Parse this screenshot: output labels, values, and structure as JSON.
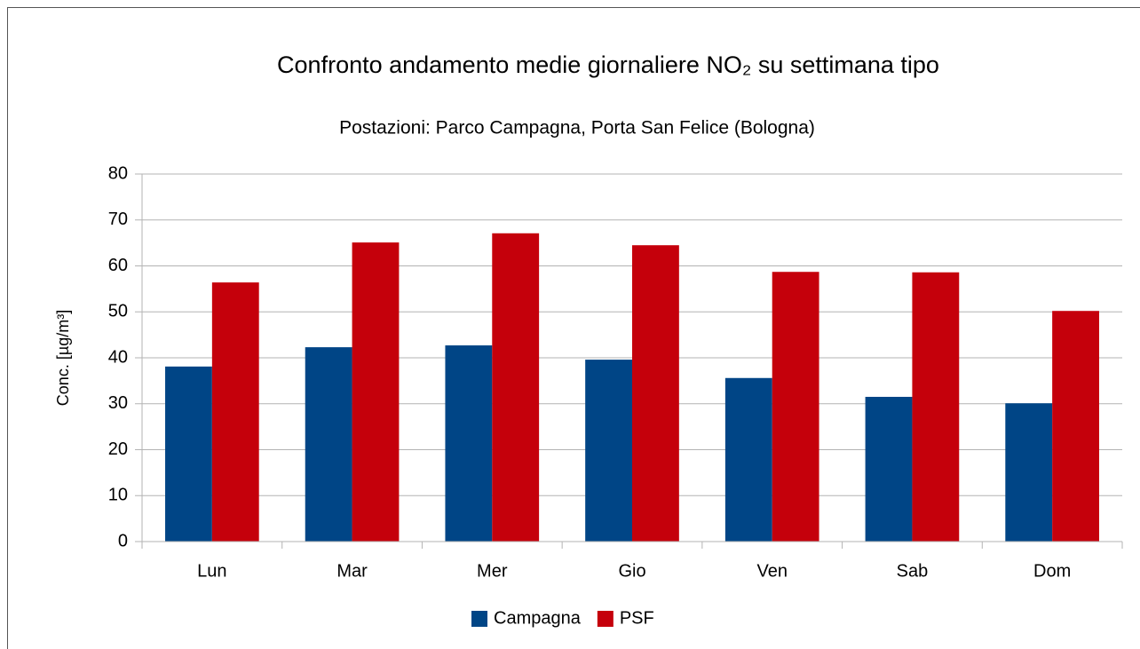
{
  "chart_data": {
    "type": "bar",
    "title": "Confronto andamento medie giornaliere NO₂  su settimana tipo",
    "subtitle": "Postazioni: Parco Campagna, Porta San Felice (Bologna)",
    "y_label": "Conc. [µg/m³]",
    "categories": [
      "Lun",
      "Mar",
      "Mer",
      "Gio",
      "Ven",
      "Sab",
      "Dom"
    ],
    "series": [
      {
        "name": "Campagna",
        "color": "#004586",
        "values": [
          38.1,
          42.3,
          42.7,
          39.6,
          35.6,
          31.5,
          30.1
        ]
      },
      {
        "name": "PSF",
        "color": "#c5000b",
        "values": [
          56.4,
          65.1,
          67.1,
          64.5,
          58.7,
          58.6,
          50.2
        ]
      }
    ],
    "ylim": [
      0,
      80
    ],
    "yticks": [
      0,
      10,
      20,
      30,
      40,
      50,
      60,
      70,
      80
    ],
    "grid": true,
    "legend": "bottom"
  }
}
